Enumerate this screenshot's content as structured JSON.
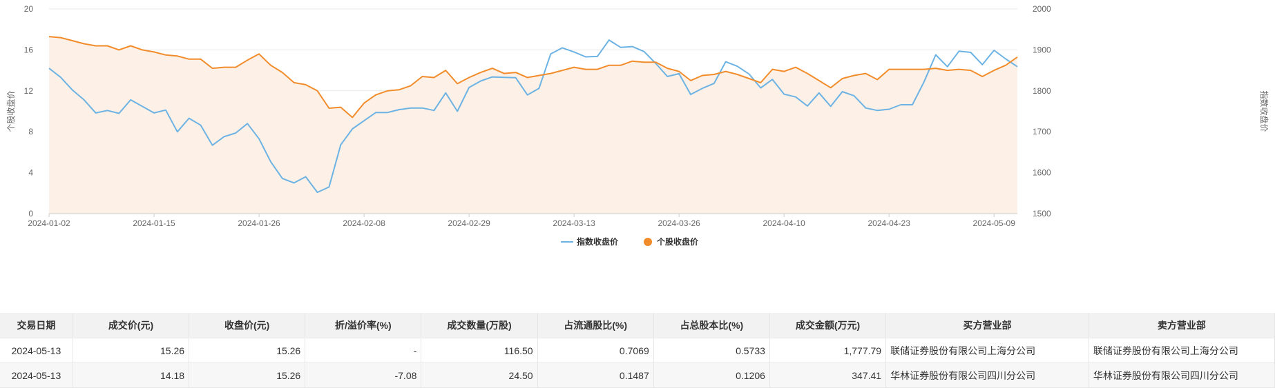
{
  "chart_data": {
    "type": "line",
    "left_axis": {
      "label": "个股收盘价",
      "min": 0,
      "max": 20,
      "ticks": [
        0,
        4,
        8,
        12,
        16,
        20
      ]
    },
    "right_axis": {
      "label": "指数收盘价",
      "min": 1500,
      "max": 2000,
      "ticks": [
        1500,
        1600,
        1700,
        1800,
        1900,
        2000
      ]
    },
    "x_tick_labels": [
      "2024-01-02",
      "2024-01-15",
      "2024-01-26",
      "2024-02-08",
      "2024-02-29",
      "2024-03-13",
      "2024-03-26",
      "2024-04-10",
      "2024-04-23",
      "2024-05-09"
    ],
    "x_tick_indices": [
      0,
      9,
      18,
      27,
      36,
      45,
      54,
      63,
      72,
      81
    ],
    "legend_position": "bottom",
    "colors": {
      "index": "#6cb3e4",
      "stock": "#f28c2b",
      "area": "#fdf0e6",
      "grid": "#e8e8e8"
    },
    "series": [
      {
        "name": "指数收盘价",
        "axis": "right",
        "values": [
          1855,
          1833,
          1802,
          1778,
          1746,
          1752,
          1745,
          1778,
          1762,
          1746,
          1753,
          1700,
          1733,
          1716,
          1667,
          1688,
          1697,
          1720,
          1683,
          1627,
          1586,
          1575,
          1590,
          1552,
          1565,
          1668,
          1707,
          1727,
          1747,
          1747,
          1754,
          1758,
          1758,
          1752,
          1795,
          1750,
          1808,
          1824,
          1834,
          1833,
          1832,
          1790,
          1806,
          1890,
          1905,
          1895,
          1883,
          1884,
          1924,
          1906,
          1908,
          1896,
          1867,
          1835,
          1842,
          1791,
          1806,
          1818,
          1871,
          1860,
          1841,
          1807,
          1828,
          1792,
          1785,
          1763,
          1795,
          1762,
          1798,
          1788,
          1758,
          1752,
          1755,
          1766,
          1766,
          1822,
          1888,
          1859,
          1897,
          1894,
          1864,
          1899,
          1878,
          1859
        ],
        "legend_label": "指数收盘价"
      },
      {
        "name": "个股收盘价",
        "axis": "left",
        "values": [
          17.3,
          17.2,
          16.9,
          16.6,
          16.4,
          16.4,
          16.0,
          16.4,
          16.0,
          15.8,
          15.5,
          15.4,
          15.1,
          15.1,
          14.2,
          14.3,
          14.3,
          15.0,
          15.6,
          14.5,
          13.8,
          12.8,
          12.6,
          12.0,
          10.3,
          10.4,
          9.4,
          10.8,
          11.6,
          12.0,
          12.1,
          12.5,
          13.4,
          13.3,
          14.0,
          12.7,
          13.3,
          13.8,
          14.2,
          13.7,
          13.8,
          13.3,
          13.5,
          13.7,
          14.0,
          14.3,
          14.1,
          14.1,
          14.5,
          14.5,
          14.9,
          14.8,
          14.8,
          14.2,
          13.9,
          13.0,
          13.5,
          13.6,
          13.9,
          13.6,
          13.2,
          12.8,
          14.1,
          13.9,
          14.3,
          13.7,
          13.0,
          12.3,
          13.2,
          13.5,
          13.7,
          13.1,
          14.1,
          14.1,
          14.1,
          14.1,
          14.2,
          14.0,
          14.1,
          14.0,
          13.4,
          14.0,
          14.5,
          15.3
        ],
        "legend_label": "个股收盘价"
      }
    ]
  },
  "table": {
    "headers": [
      "交易日期",
      "成交价(元)",
      "收盘价(元)",
      "折/溢价率(%)",
      "成交数量(万股)",
      "占流通股比(%)",
      "占总股本比(%)",
      "成交金额(万元)",
      "买方营业部",
      "卖方营业部"
    ],
    "rows": [
      [
        "2024-05-13",
        "15.26",
        "15.26",
        "-",
        "116.50",
        "0.7069",
        "0.5733",
        "1,777.79",
        "联储证券股份有限公司上海分公司",
        "联储证券股份有限公司上海分公司"
      ],
      [
        "2024-05-13",
        "14.18",
        "15.26",
        "-7.08",
        "24.50",
        "0.1487",
        "0.1206",
        "347.41",
        "华林证券股份有限公司四川分公司",
        "华林证券股份有限公司四川分公司"
      ]
    ]
  }
}
